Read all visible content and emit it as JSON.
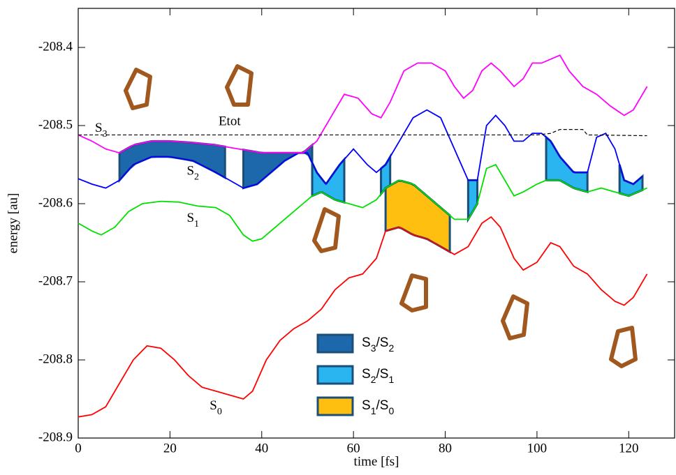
{
  "chart_data": {
    "type": "line",
    "xlabel": "time [fs]",
    "ylabel": "energy [au]",
    "xlim": [
      0,
      130
    ],
    "ylim": [
      -208.9,
      -208.35
    ],
    "xticks": [
      0,
      20,
      40,
      60,
      80,
      100,
      120
    ],
    "yticks": [
      -208.9,
      -208.8,
      -208.7,
      -208.6,
      -208.5,
      -208.4
    ],
    "series": [
      {
        "name": "S0",
        "color": "#ff0000",
        "x": [
          0,
          3,
          6,
          9,
          12,
          15,
          18,
          21,
          24,
          27,
          30,
          33,
          36,
          38,
          41,
          44,
          47,
          50,
          53,
          56,
          59,
          62,
          65,
          67,
          70,
          73,
          76,
          79,
          82,
          85,
          88,
          90,
          92,
          95,
          97,
          100,
          103,
          105,
          108,
          111,
          114,
          117,
          119,
          121,
          124
        ],
        "values": [
          -208.873,
          -208.87,
          -208.86,
          -208.83,
          -208.8,
          -208.782,
          -208.785,
          -208.8,
          -208.82,
          -208.835,
          -208.84,
          -208.845,
          -208.85,
          -208.84,
          -208.8,
          -208.775,
          -208.76,
          -208.75,
          -208.735,
          -208.71,
          -208.695,
          -208.69,
          -208.67,
          -208.635,
          -208.63,
          -208.64,
          -208.645,
          -208.655,
          -208.665,
          -208.655,
          -208.625,
          -208.617,
          -208.63,
          -208.67,
          -208.685,
          -208.675,
          -208.65,
          -208.655,
          -208.68,
          -208.69,
          -208.71,
          -208.725,
          -208.73,
          -208.72,
          -208.69
        ]
      },
      {
        "name": "S1",
        "color": "#00e000",
        "x": [
          0,
          3,
          5,
          8,
          11,
          14,
          18,
          22,
          26,
          30,
          33,
          36,
          38,
          40,
          43,
          46,
          49,
          51,
          53,
          56,
          59,
          62,
          65,
          67,
          70,
          73,
          76,
          79,
          82,
          85,
          87,
          89,
          91,
          93,
          95,
          97,
          100,
          102,
          105,
          108,
          111,
          114,
          117,
          120,
          124
        ],
        "values": [
          -208.625,
          -208.635,
          -208.64,
          -208.63,
          -208.61,
          -208.6,
          -208.597,
          -208.598,
          -208.603,
          -208.605,
          -208.615,
          -208.64,
          -208.648,
          -208.645,
          -208.63,
          -208.615,
          -208.6,
          -208.59,
          -208.585,
          -208.595,
          -208.6,
          -208.605,
          -208.595,
          -208.58,
          -208.57,
          -208.575,
          -208.59,
          -208.605,
          -208.62,
          -208.62,
          -208.6,
          -208.555,
          -208.55,
          -208.57,
          -208.59,
          -208.585,
          -208.575,
          -208.57,
          -208.57,
          -208.58,
          -208.585,
          -208.58,
          -208.585,
          -208.59,
          -208.58
        ]
      },
      {
        "name": "S2",
        "color": "#0000ff",
        "x": [
          0,
          3,
          6,
          9,
          12,
          16,
          20,
          25,
          30,
          33,
          36,
          39,
          42,
          45,
          48,
          50,
          52,
          54,
          57,
          60,
          63,
          65,
          67,
          70,
          73,
          76,
          79,
          82,
          85,
          87,
          89,
          91,
          93,
          95,
          97,
          99,
          101,
          103,
          105,
          108,
          111,
          113,
          115,
          117,
          119,
          121,
          123
        ],
        "values": [
          -208.568,
          -208.575,
          -208.58,
          -208.57,
          -208.55,
          -208.54,
          -208.54,
          -208.545,
          -208.56,
          -208.57,
          -208.58,
          -208.575,
          -208.56,
          -208.545,
          -208.535,
          -208.535,
          -208.56,
          -208.575,
          -208.55,
          -208.53,
          -208.55,
          -208.56,
          -208.55,
          -208.52,
          -208.49,
          -208.48,
          -208.49,
          -208.53,
          -208.57,
          -208.57,
          -208.5,
          -208.487,
          -208.5,
          -208.52,
          -208.52,
          -208.51,
          -208.51,
          -208.52,
          -208.54,
          -208.56,
          -208.56,
          -208.515,
          -208.51,
          -208.53,
          -208.57,
          -208.575,
          -208.565
        ]
      },
      {
        "name": "S3",
        "color": "#ff00ff",
        "x": [
          0,
          3,
          6,
          9,
          12,
          16,
          20,
          25,
          30,
          35,
          40,
          45,
          49,
          52,
          55,
          58,
          61,
          64,
          66,
          68,
          71,
          74,
          77,
          80,
          82,
          84,
          86,
          88,
          90,
          92,
          95,
          97,
          99,
          101,
          103,
          105,
          107,
          110,
          113,
          116,
          119,
          121,
          124
        ],
        "values": [
          -208.512,
          -208.52,
          -208.53,
          -208.535,
          -208.525,
          -208.52,
          -208.52,
          -208.522,
          -208.525,
          -208.53,
          -208.535,
          -208.535,
          -208.535,
          -208.52,
          -208.49,
          -208.46,
          -208.465,
          -208.485,
          -208.49,
          -208.47,
          -208.43,
          -208.42,
          -208.42,
          -208.43,
          -208.45,
          -208.465,
          -208.455,
          -208.43,
          -208.42,
          -208.43,
          -208.45,
          -208.44,
          -208.42,
          -208.42,
          -208.415,
          -208.41,
          -208.43,
          -208.45,
          -208.46,
          -208.475,
          -208.487,
          -208.48,
          -208.45
        ]
      },
      {
        "name": "Etot",
        "color": "#000000",
        "dashed": true,
        "x": [
          0,
          100,
          103,
          105,
          110,
          111,
          124
        ],
        "values": [
          -208.512,
          -208.512,
          -208.51,
          -208.505,
          -208.505,
          -208.512,
          -208.513
        ]
      }
    ],
    "regions": [
      {
        "name": "S3/S2",
        "color": "#1d67ab",
        "ranges": [
          [
            9,
            32
          ],
          [
            36,
            51
          ]
        ]
      },
      {
        "name": "S2/S1",
        "color": "#2bb5f0",
        "ranges": [
          [
            51,
            58
          ],
          [
            66,
            68
          ],
          [
            85,
            87
          ],
          [
            102,
            111
          ],
          [
            118,
            123
          ]
        ]
      },
      {
        "name": "S1/S0",
        "color": "#ffbf10",
        "ranges": [
          [
            67,
            81
          ]
        ]
      }
    ]
  }
}
